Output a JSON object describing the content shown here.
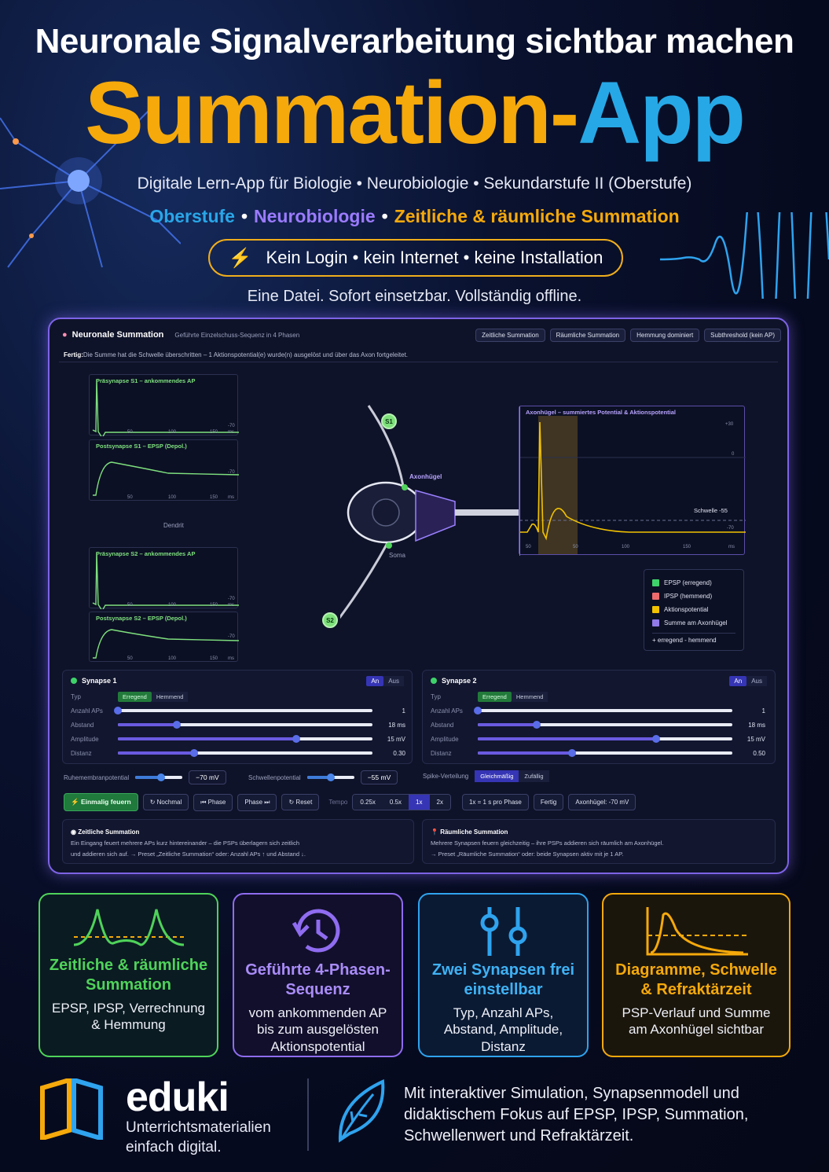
{
  "hero": {
    "headline": "Neuronale Signalverarbeitung sichtbar machen",
    "title_part1": "Summation-",
    "title_part2": "App",
    "subline": "Digitale Lern-App für Biologie • Neurobiologie • Sekundarstufe II (Oberstufe)",
    "tags": [
      "Oberstufe",
      "Neurobiologie",
      "Zeitliche & räumliche Summation"
    ],
    "pill": "Kein Login • kein Internet • keine Installation",
    "offline": "Eine Datei. Sofort einsetzbar. Vollständig offline.",
    "colors": {
      "orange": "#f5a90b",
      "blue": "#27a8e6",
      "purple": "#9b7bff"
    }
  },
  "app": {
    "name": "Neuronale Summation",
    "subtitle": "Geführte Einzelschuss-Sequenz in 4 Phasen",
    "presets": [
      "Zeitliche Summation",
      "Räumliche Summation",
      "Hemmung dominiert",
      "Subthreshold (kein AP)"
    ],
    "status_label": "Fertig:",
    "status_text": "Die Summe hat die Schwelle überschritten – 1 Aktionspotential(e) wurde(n) ausgelöst und über das Axon fortgeleitet.",
    "plots": {
      "pre_s1": "Präsynapse S1 – ankommendes AP",
      "post_s1": "Postsynapse S1 – EPSP (Depol.)",
      "pre_s2": "Präsynapse S2 – ankommendes AP",
      "post_s2": "Postsynapse S2 – EPSP (Depol.)",
      "axon": "Axonhügel – summiertes Potential & Aktionspotential",
      "ticks_x": [
        "50",
        "100",
        "150",
        "ms"
      ],
      "tick_rest": "-70",
      "axon_ticks_y": [
        "+30",
        "0",
        "-70"
      ],
      "axon_ticks_x": [
        "50",
        "50",
        "100",
        "150",
        "ms"
      ],
      "threshold_label": "Schwelle -55"
    },
    "diagram": {
      "dendrit": "Dendrit",
      "axonhuegel": "Axonhügel",
      "soma": "Soma",
      "s1": "S1",
      "s2": "S2"
    },
    "legend": {
      "items": [
        {
          "label": "EPSP (erregend)",
          "color": "#3ed36a"
        },
        {
          "label": "IPSP (hemmend)",
          "color": "#ef6b6b"
        },
        {
          "label": "Aktionspotential",
          "color": "#f2c200"
        },
        {
          "label": "Summe am Axonhügel",
          "color": "#8f7ae8"
        }
      ],
      "footer": "+ erregend   -   hemmend"
    },
    "synapse1": {
      "name": "Synapse 1",
      "on": "An",
      "off": "Aus",
      "type_label": "Typ",
      "type_on": "Erregend",
      "type_off": "Hemmend",
      "rows": [
        {
          "label": "Anzahl APs",
          "value": "1",
          "level": 0.0
        },
        {
          "label": "Abstand",
          "value": "18 ms",
          "level": 0.23
        },
        {
          "label": "Amplitude",
          "value": "15 mV",
          "level": 0.7
        },
        {
          "label": "Distanz",
          "value": "0.30",
          "level": 0.3
        }
      ]
    },
    "synapse2": {
      "name": "Synapse 2",
      "on": "An",
      "off": "Aus",
      "type_label": "Typ",
      "type_on": "Erregend",
      "type_off": "Hemmend",
      "rows": [
        {
          "label": "Anzahl APs",
          "value": "1",
          "level": 0.0
        },
        {
          "label": "Abstand",
          "value": "18 ms",
          "level": 0.23
        },
        {
          "label": "Amplitude",
          "value": "15 mV",
          "level": 0.7
        },
        {
          "label": "Distanz",
          "value": "0.50",
          "level": 0.37
        }
      ]
    },
    "globals": {
      "rest_label": "Ruhemembranpotential",
      "rest_value": "−70 mV",
      "rest_level": 0.55,
      "threshold_label": "Schwellenpotential",
      "threshold_value": "−55 mV",
      "threshold_level": 0.5,
      "spike_label": "Spike-Verteilung",
      "spike_on": "Gleichmäßig",
      "spike_off": "Zufällig"
    },
    "controls": {
      "fire": "Einmalig feuern",
      "again": "Nochmal",
      "phase_prev": "Phase",
      "phase_next": "Phase",
      "reset": "Reset",
      "tempo": "Tempo",
      "tempos": [
        "0.25x",
        "0.5x",
        "1x",
        "2x"
      ],
      "tempo_active": "1x",
      "tempo_info": "1x = 1 s pro Phase",
      "state": "Fertig",
      "axon_value": "Axonhügel: -70 mV"
    },
    "info_temporal": {
      "title": "Zeitliche Summation",
      "line1": "Ein Eingang feuert mehrere APs kurz hintereinander – die PSPs überlagern sich zeitlich",
      "line2": "und addieren sich auf. → Preset „Zeitliche Summation“ oder: Anzahl APs ↑ und Abstand ↓."
    },
    "info_spatial": {
      "title": "Räumliche Summation",
      "line1": "Mehrere Synapsen feuern gleichzeitig – ihre PSPs addieren sich räumlich am Axonhügel.",
      "line2": "→ Preset „Räumliche Summation“ oder: beide Synapsen aktiv mit je 1 AP."
    }
  },
  "cards": [
    {
      "title": "Zeitliche & räumliche Summation",
      "desc": "EPSP, IPSP, Verrechnung & Hemmung",
      "color": "#4fd35a"
    },
    {
      "title": "Geführte 4-Phasen-Sequenz",
      "desc": "vom ankommenden AP bis zum ausgelösten Aktionspotential",
      "color": "#8f6cf0"
    },
    {
      "title": "Zwei Synapsen frei einstellbar",
      "desc": "Typ, Anzahl APs, Abstand, Amplitude, Distanz",
      "color": "#2fa3ee"
    },
    {
      "title": "Diagramme, Schwelle & Refraktärzeit",
      "desc": "PSP-Verlauf und Summe am Axonhügel sichtbar",
      "color": "#f5a90b"
    }
  ],
  "footer": {
    "brand": "eduki",
    "brand_sub1": "Unterrichtsmaterialien",
    "brand_sub2": "einfach digital.",
    "text": "Mit interaktiver Simulation, Synapsenmodell und didaktischem Fokus auf EPSP, IPSP, Summation, Schwellenwert und Refraktärzeit."
  }
}
